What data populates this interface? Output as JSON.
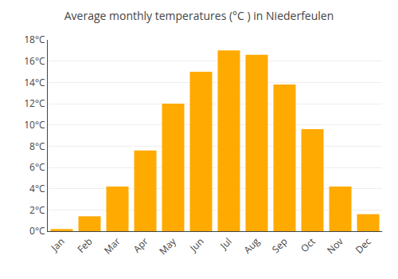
{
  "chart_data": {
    "type": "bar",
    "title": "Average monthly temperatures (°C ) in Niederfeulen",
    "categories": [
      "Jan",
      "Feb",
      "Mar",
      "Apr",
      "May",
      "Jun",
      "Jul",
      "Aug",
      "Sep",
      "Oct",
      "Nov",
      "Dec"
    ],
    "values": [
      0.2,
      1.4,
      4.2,
      7.6,
      12.0,
      15.0,
      17.0,
      16.6,
      13.8,
      9.6,
      4.2,
      1.6
    ],
    "color": "#FFAA00",
    "ylim": [
      0,
      18
    ],
    "yticks": [
      {
        "value": 0,
        "label": "0°C"
      },
      {
        "value": 2,
        "label": "2°C"
      },
      {
        "value": 4,
        "label": "4°C"
      },
      {
        "value": 6,
        "label": "6°C"
      },
      {
        "value": 8,
        "label": "8°C"
      },
      {
        "value": 10,
        "label": "10°C"
      },
      {
        "value": 12,
        "label": "12°C"
      },
      {
        "value": 14,
        "label": "14°C"
      },
      {
        "value": 16,
        "label": "16°C"
      },
      {
        "value": 18,
        "label": "18°C"
      }
    ],
    "grid": true
  }
}
